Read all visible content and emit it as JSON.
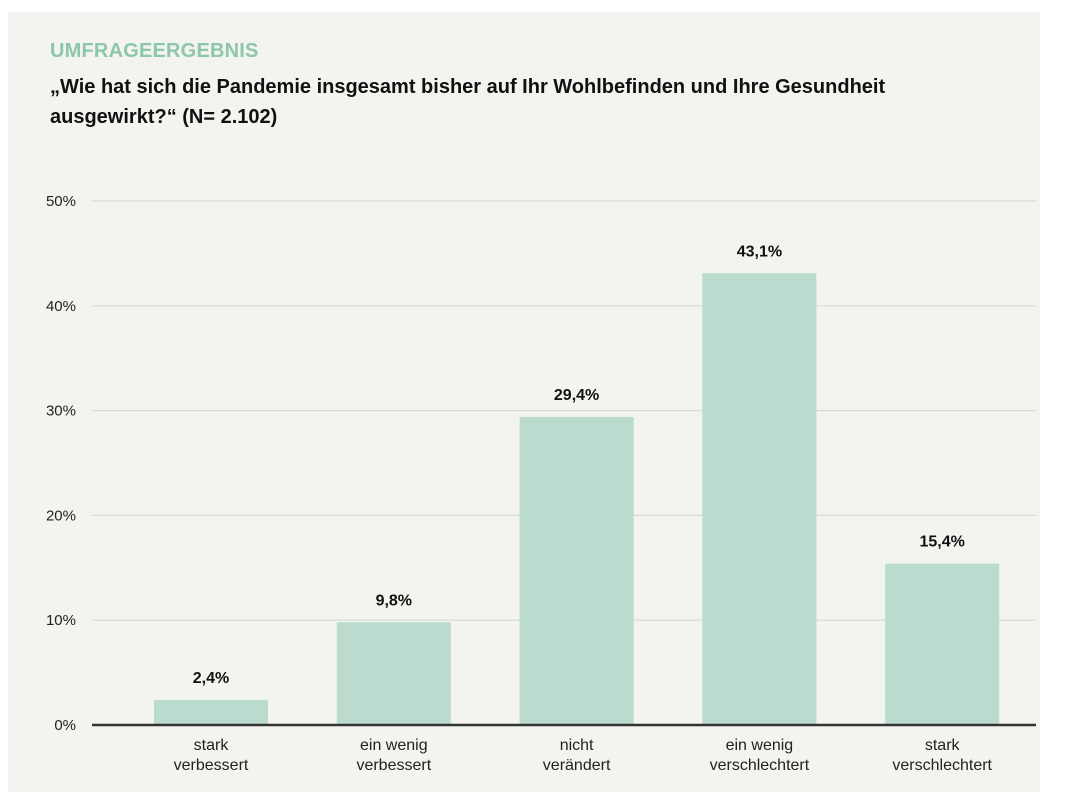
{
  "header": {
    "eyebrow": "UMFRAGEERGEBNIS",
    "title": "„Wie hat sich die Pandemie insgesamt bisher auf Ihr Wohlbefinden und Ihre Gesundheit ausgewirkt?“ (N= 2.102)"
  },
  "colors": {
    "background": "#f3f4ef",
    "eyebrow": "#8cc7a9",
    "bar": "#badbcd",
    "grid": "#d7d9d3",
    "axis": "#333333"
  },
  "chart_data": {
    "type": "bar",
    "title": "„Wie hat sich die Pandemie insgesamt bisher auf Ihr Wohlbefinden und Ihre Gesundheit ausgewirkt?“ (N= 2.102)",
    "xlabel": "",
    "ylabel": "",
    "categories": [
      [
        "stark",
        "verbessert"
      ],
      [
        "ein wenig",
        "verbessert"
      ],
      [
        "nicht",
        "verändert"
      ],
      [
        "ein wenig",
        "verschlechtert"
      ],
      [
        "stark",
        "verschlechtert"
      ]
    ],
    "values": [
      2.4,
      9.8,
      29.4,
      43.1,
      15.4
    ],
    "data_labels": [
      "2,4%",
      "9,8%",
      "29,4%",
      "43,1%",
      "15,4%"
    ],
    "ylim": [
      0,
      50
    ],
    "yticks": [
      0,
      10,
      20,
      30,
      40,
      50
    ],
    "ytick_labels": [
      "0%",
      "10%",
      "20%",
      "30%",
      "40%",
      "50%"
    ],
    "grid": true,
    "legend": "none"
  }
}
